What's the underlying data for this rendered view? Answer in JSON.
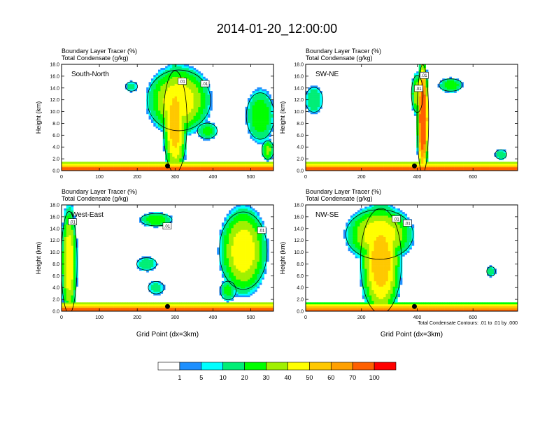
{
  "title": "2014-01-20_12:00:00",
  "colors": {
    "bins": [
      "#ffffff",
      "#1e90ff",
      "#00ffff",
      "#00ee76",
      "#00ff00",
      "#a0f000",
      "#ffff00",
      "#ffc800",
      "#ffa000",
      "#ff6000",
      "#ff0000"
    ],
    "contour": "#000000"
  },
  "colorbar": {
    "labels": [
      "1",
      "5",
      "10",
      "20",
      "30",
      "40",
      "50",
      "60",
      "70",
      "100"
    ]
  },
  "footnote": "Total Condensate Contours: .01 to .01 by .000",
  "chart_data": [
    {
      "type": "heatmap",
      "panel_label": "South-North",
      "header1": "Boundary Layer Tracer   (%)",
      "header2": "Total Condensate   (g/kg)",
      "xlabel": "",
      "ylabel": "Height (km)",
      "xlim": [
        0,
        560
      ],
      "ylim": [
        0,
        18
      ],
      "xticks": [
        "0",
        "100",
        "200",
        "300",
        "400",
        "500"
      ],
      "yticks": [
        "0.0",
        "2.0",
        "4.0",
        "6.0",
        "8.0",
        "10.0",
        "12.0",
        "14.0",
        "16.0",
        "18.0"
      ],
      "marker_x": 280,
      "contour_labels": [
        ".01",
        ".01"
      ],
      "features": [
        {
          "x0": 0,
          "x1": 560,
          "base": 0,
          "top": 1.5,
          "peak": 95
        },
        {
          "x0": 270,
          "x1": 330,
          "base": 0,
          "top": 16.5,
          "peak": 60
        },
        {
          "x0": 230,
          "x1": 390,
          "base": 7,
          "top": 16.8,
          "peak": 50
        },
        {
          "x0": 170,
          "x1": 200,
          "base": 13.5,
          "top": 15,
          "peak": 15
        },
        {
          "x0": 360,
          "x1": 410,
          "base": 5.5,
          "top": 8,
          "peak": 25
        },
        {
          "x0": 490,
          "x1": 560,
          "base": 5.5,
          "top": 13,
          "peak": 30
        },
        {
          "x0": 530,
          "x1": 560,
          "base": 2,
          "top": 5,
          "peak": 35
        }
      ]
    },
    {
      "type": "heatmap",
      "panel_label": "SW-NE",
      "header1": "Boundary Layer Tracer   (%)",
      "header2": "Total Condensate   (g/kg)",
      "xlabel": "",
      "ylabel": "Height (km)",
      "xlim": [
        0,
        760
      ],
      "ylim": [
        0,
        18
      ],
      "xticks": [
        "0",
        "200",
        "400",
        "600"
      ],
      "yticks": [
        "0.0",
        "2.0",
        "4.0",
        "6.0",
        "8.0",
        "10.0",
        "12.0",
        "14.0",
        "16.0",
        "18.0"
      ],
      "marker_x": 390,
      "contour_labels": [
        ".01",
        ".01"
      ],
      "features": [
        {
          "x0": 0,
          "x1": 760,
          "base": 0,
          "top": 1.5,
          "peak": 95
        },
        {
          "x0": 400,
          "x1": 440,
          "base": 0,
          "top": 17.5,
          "peak": 90
        },
        {
          "x0": 380,
          "x1": 420,
          "base": 10,
          "top": 16,
          "peak": 40
        },
        {
          "x0": 0,
          "x1": 60,
          "base": 10,
          "top": 14,
          "peak": 20
        },
        {
          "x0": 480,
          "x1": 560,
          "base": 13.5,
          "top": 15.5,
          "peak": 30
        },
        {
          "x0": 680,
          "x1": 720,
          "base": 2,
          "top": 3.5,
          "peak": 20
        }
      ]
    },
    {
      "type": "heatmap",
      "panel_label": "West-East",
      "header1": "Boundary Layer Tracer   (%)",
      "header2": "Total Condensate   (g/kg)",
      "xlabel": "Grid Point (dx=3km)",
      "ylabel": "Height (km)",
      "xlim": [
        0,
        560
      ],
      "ylim": [
        0,
        18
      ],
      "xticks": [
        "0",
        "100",
        "200",
        "300",
        "400",
        "500"
      ],
      "yticks": [
        "0.0",
        "2.0",
        "4.0",
        "6.0",
        "8.0",
        "10.0",
        "12.0",
        "14.0",
        "16.0",
        "18.0"
      ],
      "marker_x": 280,
      "contour_labels": [
        ".01",
        ".01",
        ".01"
      ],
      "features": [
        {
          "x0": 0,
          "x1": 560,
          "base": 0,
          "top": 1.5,
          "peak": 95
        },
        {
          "x0": 0,
          "x1": 40,
          "base": 0,
          "top": 16.5,
          "peak": 50
        },
        {
          "x0": 210,
          "x1": 290,
          "base": 14.5,
          "top": 16.5,
          "peak": 30
        },
        {
          "x0": 420,
          "x1": 540,
          "base": 4,
          "top": 16.5,
          "peak": 50
        },
        {
          "x0": 200,
          "x1": 250,
          "base": 7,
          "top": 9,
          "peak": 20
        },
        {
          "x0": 230,
          "x1": 270,
          "base": 3,
          "top": 5,
          "peak": 15
        },
        {
          "x0": 420,
          "x1": 460,
          "base": 2,
          "top": 5,
          "peak": 25
        }
      ]
    },
    {
      "type": "heatmap",
      "panel_label": "NW-SE",
      "header1": "Boundary Layer Tracer   (%)",
      "header2": "Total Condensate   (g/kg)",
      "xlabel": "Grid Point (dx=3km)",
      "ylabel": "Height (km)",
      "xlim": [
        0,
        760
      ],
      "ylim": [
        0,
        18
      ],
      "xticks": [
        "0",
        "200",
        "400",
        "600"
      ],
      "yticks": [
        "0.0",
        "2.0",
        "4.0",
        "6.0",
        "8.0",
        "10.0",
        "12.0",
        "14.0",
        "16.0",
        "18.0"
      ],
      "marker_x": 390,
      "contour_labels": [
        ".01",
        ".01"
      ],
      "features": [
        {
          "x0": 0,
          "x1": 760,
          "base": 0,
          "top": 1.5,
          "peak": 90
        },
        {
          "x0": 200,
          "x1": 340,
          "base": 0,
          "top": 17,
          "peak": 60
        },
        {
          "x0": 150,
          "x1": 380,
          "base": 9,
          "top": 17,
          "peak": 50
        },
        {
          "x0": 650,
          "x1": 680,
          "base": 6,
          "top": 7.5,
          "peak": 20
        }
      ]
    }
  ]
}
